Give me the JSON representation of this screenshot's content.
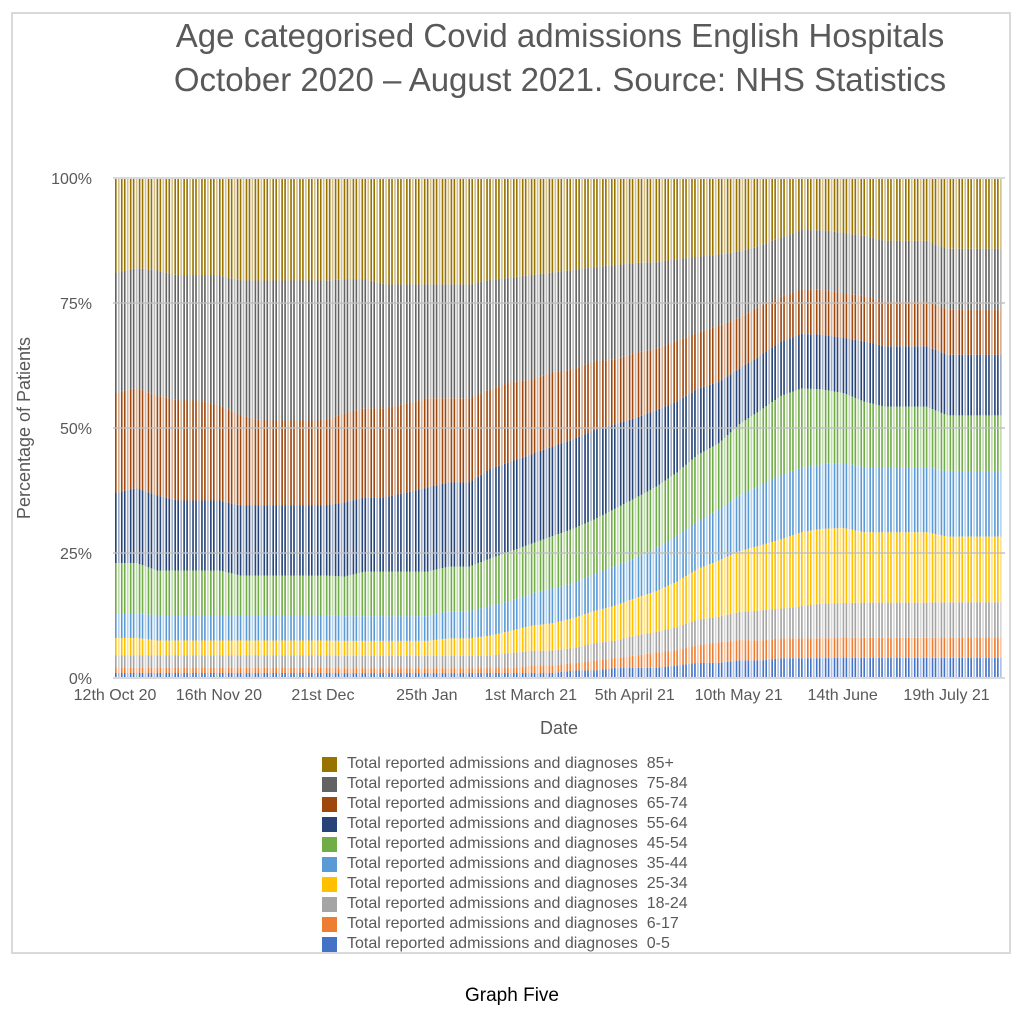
{
  "caption": "Graph Five",
  "chart_data": {
    "type": "bar",
    "stacked": "percent",
    "title": "Age categorised Covid admissions English Hospitals October 2020 – August 2021. Source: NHS Statistics",
    "title_lines": [
      "Age categorised Covid admissions English Hospitals",
      "October 2020 – August 2021. Source: NHS Statistics"
    ],
    "xlabel": "Date",
    "ylabel": "Percentage of Patients",
    "ylim": [
      0,
      100
    ],
    "yticks": [
      "0%",
      "25%",
      "50%",
      "75%",
      "100%"
    ],
    "ytick_values": [
      0,
      25,
      50,
      75,
      100
    ],
    "xtick_labels": [
      "12th Oct 20",
      "16th Nov 20",
      "21st Dec",
      "25th Jan",
      "1st March 21",
      "5th April 21",
      "10th May 21",
      "14th June",
      "19th July 21"
    ],
    "xtick_day_index": [
      0,
      35,
      70,
      105,
      140,
      175,
      210,
      245,
      280
    ],
    "grid": "horizontal",
    "legend_position": "bottom",
    "start_date": "2020-10-12",
    "num_days": 299,
    "x_resolution": "weekly estimates (daily bars interpolated)",
    "week_start_day_index": [
      0,
      7,
      14,
      21,
      28,
      35,
      42,
      49,
      56,
      63,
      70,
      77,
      84,
      91,
      98,
      105,
      112,
      119,
      126,
      133,
      140,
      147,
      154,
      161,
      168,
      175,
      182,
      189,
      196,
      203,
      210,
      217,
      224,
      231,
      238,
      245,
      252,
      259,
      266,
      273,
      280,
      287,
      294
    ],
    "series": [
      {
        "name": "Total reported admissions and diagnoses  0-5",
        "color": "#4472c4",
        "values": [
          1,
          1,
          1,
          1,
          1,
          1,
          1,
          1,
          1,
          1,
          1,
          1,
          1,
          1,
          1,
          1,
          1,
          1,
          1,
          1,
          1,
          1,
          1.5,
          1.5,
          2,
          2,
          2,
          2.5,
          3,
          3,
          3.5,
          3.5,
          4,
          4,
          4,
          4,
          4,
          4,
          4,
          4,
          4,
          4,
          4
        ]
      },
      {
        "name": "Total reported admissions and diagnoses  6-17",
        "color": "#ed7d31",
        "values": [
          1,
          1,
          1,
          1,
          1,
          1,
          1,
          1,
          1,
          1,
          1,
          1,
          1,
          1,
          1,
          1,
          1,
          1,
          1,
          1,
          1.5,
          1.5,
          1.5,
          2,
          2,
          2.5,
          3,
          3,
          3.5,
          4,
          4,
          4,
          4,
          4,
          4,
          4,
          4,
          4,
          4,
          4,
          4,
          4,
          4
        ]
      },
      {
        "name": "Total reported admissions and diagnoses  18-24",
        "color": "#a5a5a5",
        "values": [
          2.5,
          2.5,
          2.5,
          2.5,
          2.5,
          2.5,
          2.5,
          2.5,
          2.5,
          2.5,
          2.5,
          2.5,
          2.5,
          2.5,
          2.5,
          2.5,
          2.5,
          2.5,
          2.5,
          3,
          3,
          3,
          3,
          3.5,
          3.5,
          4,
          4,
          4.5,
          5,
          5,
          5.5,
          6,
          6,
          6.5,
          7,
          7,
          7,
          7,
          7,
          7,
          7,
          7,
          7
        ]
      },
      {
        "name": "Total reported admissions and diagnoses  25-34",
        "color": "#ffc000",
        "values": [
          3.5,
          3.5,
          3,
          3,
          3,
          3,
          3,
          3,
          3,
          3,
          3,
          3,
          3,
          3,
          3,
          3,
          3.5,
          3.5,
          4,
          4.5,
          5,
          5.5,
          6,
          6.5,
          7,
          7.5,
          8,
          9,
          10,
          11,
          12,
          13,
          14,
          15,
          15,
          15,
          14,
          14,
          14,
          14,
          13,
          13,
          13
        ]
      },
      {
        "name": "Total reported admissions and diagnoses  35-44",
        "color": "#5b9bd5",
        "values": [
          5,
          5,
          5,
          5,
          5,
          5,
          5,
          5,
          5,
          5,
          5,
          5,
          5,
          5,
          5,
          5,
          5.5,
          5.5,
          6,
          6,
          6.5,
          7,
          7,
          7.5,
          8,
          8,
          8.5,
          9,
          9.5,
          10,
          11,
          12,
          13,
          13,
          13,
          13,
          13,
          13,
          13,
          13,
          13,
          13,
          13
        ]
      },
      {
        "name": "Total reported admissions and diagnoses  45-54",
        "color": "#70ad47",
        "values": [
          10,
          10,
          9,
          9,
          9,
          9,
          8,
          8,
          8,
          8,
          8,
          8,
          9,
          9,
          9,
          9,
          9,
          9,
          9.5,
          10,
          10,
          10.5,
          11,
          11,
          11.5,
          12,
          12,
          12.5,
          13,
          13,
          14,
          15,
          16,
          16,
          15,
          14,
          13,
          12,
          12,
          12,
          11,
          11,
          11
        ]
      },
      {
        "name": "Total reported admissions and diagnoses  55-64",
        "color": "#264478",
        "values": [
          14,
          15,
          15,
          14,
          14,
          14,
          14,
          14,
          14,
          14,
          14,
          15,
          15,
          15,
          16,
          17,
          17,
          17,
          18,
          18,
          18,
          18,
          18,
          18,
          17,
          16,
          15,
          14,
          13,
          12,
          11,
          11,
          11,
          11,
          11,
          11,
          12,
          12,
          12,
          12,
          12,
          12,
          12
        ]
      },
      {
        "name": "Total reported admissions and diagnoses  65-74",
        "color": "#9e480e",
        "values": [
          20,
          20,
          20,
          20,
          20,
          19,
          18,
          17,
          17,
          17,
          17,
          18,
          18,
          18,
          18,
          18,
          17,
          17,
          16,
          16,
          15,
          15,
          14,
          14,
          13,
          13,
          12,
          12,
          11,
          11,
          10,
          10,
          9,
          9,
          9,
          9,
          9,
          9,
          9,
          9,
          9,
          9,
          9
        ]
      },
      {
        "name": "Total reported admissions and diagnoses  75-84",
        "color": "#636363",
        "values": [
          24,
          24,
          25,
          25,
          25,
          26,
          27,
          28,
          28,
          28,
          28,
          27,
          26,
          25,
          24,
          23,
          23,
          23,
          22,
          21,
          21,
          20,
          20,
          19,
          19,
          18,
          17,
          16,
          15,
          14,
          13,
          12,
          12,
          12,
          12,
          12,
          12,
          12,
          12,
          12,
          12,
          12,
          12
        ]
      },
      {
        "name": "Total reported admissions and diagnoses  85+",
        "color": "#997300",
        "values": [
          19,
          18,
          18.5,
          19.5,
          19.5,
          19.5,
          20.5,
          20.5,
          20.5,
          20.5,
          20.5,
          20.5,
          20.5,
          21.5,
          21.5,
          21.5,
          21.5,
          21.5,
          20.5,
          20,
          19.5,
          19,
          18.5,
          18,
          17.5,
          17,
          16.5,
          16,
          15.5,
          15,
          14.5,
          13.5,
          12,
          10.5,
          10.5,
          11,
          11.5,
          12.5,
          12.5,
          12.5,
          14,
          14,
          14
        ]
      }
    ]
  }
}
